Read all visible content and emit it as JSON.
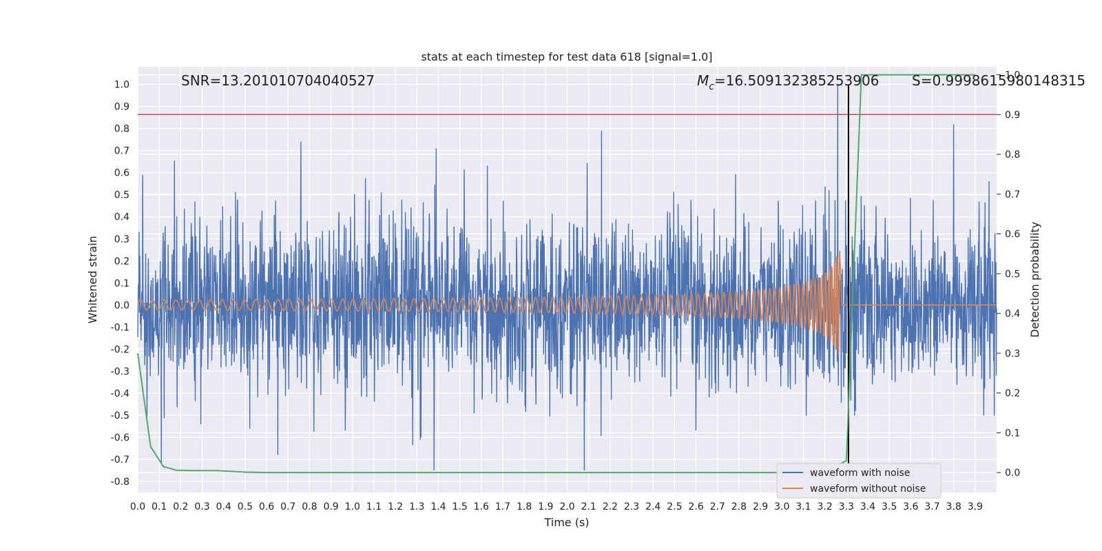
{
  "chart_data": {
    "type": "line",
    "title": "stats at each timestep for test data 618 [signal=1.0]",
    "xlabel": "Time (s)",
    "ylabel_left": "Whitened strain",
    "ylabel_right": "Detection probability",
    "xlim": [
      0.0,
      4.0
    ],
    "ylim_left": [
      -0.85,
      1.08
    ],
    "ylim_right": [
      -0.05,
      1.02
    ],
    "grid": true,
    "legend_position": "lower-right",
    "annotations": {
      "snr": "SNR=13.201010704040527",
      "mc_symbol": "M",
      "mc_sub": "c",
      "mc_value": "=16.509132385253906",
      "s": "S=0.9998615980148315"
    },
    "x_ticks": [
      "0.0",
      "0.1",
      "0.2",
      "0.3",
      "0.4",
      "0.5",
      "0.6",
      "0.7",
      "0.8",
      "0.9",
      "1.0",
      "1.1",
      "1.2",
      "1.3",
      "1.4",
      "1.5",
      "1.6",
      "1.7",
      "1.8",
      "1.9",
      "2.0",
      "2.1",
      "2.2",
      "2.3",
      "2.4",
      "2.5",
      "2.6",
      "2.7",
      "2.8",
      "2.9",
      "3.0",
      "3.1",
      "3.2",
      "3.3",
      "3.4",
      "3.5",
      "3.6",
      "3.7",
      "3.8",
      "3.9"
    ],
    "y_ticks_left": [
      "1.0",
      "0.9",
      "0.8",
      "0.7",
      "0.6",
      "0.5",
      "0.4",
      "0.3",
      "0.2",
      "0.1",
      "0.0",
      "-0.1",
      "-0.2",
      "-0.3",
      "-0.4",
      "-0.5",
      "-0.6",
      "-0.7",
      "-0.8"
    ],
    "y_ticks_right": [
      "1.0",
      "0.9",
      "0.8",
      "0.7",
      "0.6",
      "0.5",
      "0.4",
      "0.3",
      "0.2",
      "0.1",
      "0.0"
    ],
    "series": [
      {
        "name": "waveform with noise",
        "color": "#4c72b0",
        "note_values": "dense Gaussian-like noise, amplitude roughly within [-0.75, 1.0]; sampled representation",
        "x_range": [
          0.0,
          4.0
        ],
        "approx_std": 0.18,
        "peak_points": [
          [
            0.11,
            -0.72
          ],
          [
            0.76,
            0.74
          ],
          [
            1.38,
            -0.75
          ],
          [
            1.39,
            0.71
          ],
          [
            2.08,
            -0.75
          ],
          [
            2.16,
            0.79
          ],
          [
            3.26,
            1.0
          ],
          [
            3.8,
            0.82
          ]
        ]
      },
      {
        "name": "waveform without noise",
        "color": "#dd8452",
        "note_values": "chirp: oscillation with slowly growing amplitude and frequency, merger near t=3.27 s, then flat zero",
        "chirp_params": {
          "t_start": 0.0,
          "t_merge": 3.27,
          "amp_start": 0.022,
          "amp_merge": 0.49,
          "freq_start_hz": 18,
          "freq_merge_hz": 240
        }
      },
      {
        "name": "detection probability",
        "axis": "right",
        "color": "#55a868",
        "x": [
          0.0,
          0.06,
          0.12,
          0.18,
          0.25,
          0.37,
          0.5,
          0.6,
          1.0,
          2.0,
          3.0,
          3.2,
          3.3,
          3.37,
          3.9
        ],
        "y": [
          0.3,
          0.065,
          0.015,
          0.006,
          0.005,
          0.005,
          0.001,
          0.0,
          0.0,
          0.0,
          0.0,
          0.0,
          0.03,
          1.0,
          1.0
        ]
      }
    ],
    "reference_lines": [
      {
        "type": "horizontal",
        "axis": "right",
        "value": 0.9,
        "color": "#c44e52"
      },
      {
        "type": "vertical",
        "x": 3.31,
        "color": "#000000"
      }
    ],
    "legend": [
      "waveform with noise",
      "waveform without noise"
    ]
  }
}
